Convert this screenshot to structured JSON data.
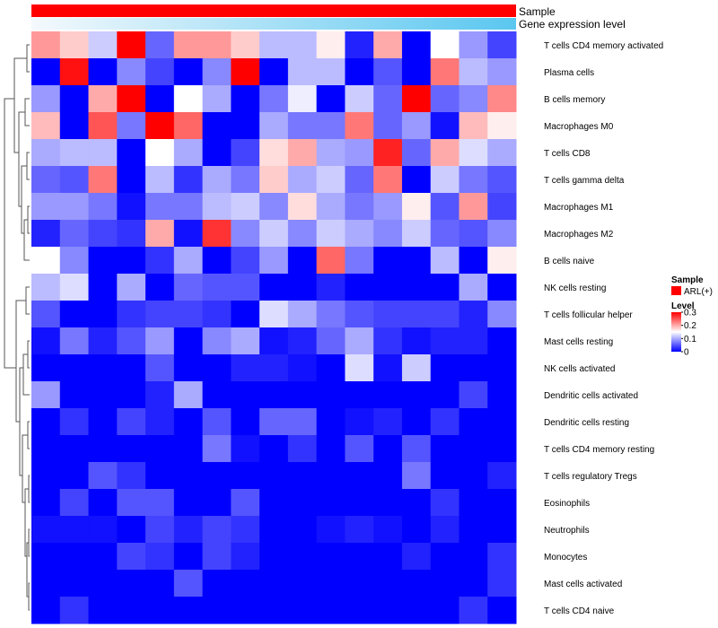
{
  "chart_data": {
    "type": "heatmap",
    "annotation_tracks": [
      {
        "name": "Sample",
        "color": "#ff0000"
      },
      {
        "name": "Gene expression level",
        "gradient": [
          "#f4f9fc",
          "#5ac7f0"
        ]
      }
    ],
    "rows": [
      "T cells CD4 memory activated",
      "Plasma cells",
      "B cells memory",
      "Macrophages M0",
      "T cells CD8",
      "T cells gamma delta",
      "Macrophages M1",
      "Macrophages M2",
      "B cells naive",
      "NK cells resting",
      "T cells follicular helper",
      "Mast cells resting",
      "NK cells activated",
      "Dendritic cells activated",
      "Dendritic cells resting",
      "T cells CD4 memory resting",
      "T cells regulatory  Tregs",
      "Eosinophils",
      "Neutrophils",
      "Monocytes",
      "Mast cells activated",
      "T cells CD4 naive"
    ],
    "values": [
      [
        0.21,
        0.18,
        0.12,
        0.3,
        0.06,
        0.21,
        0.21,
        0.18,
        0.11,
        0.11,
        0.16,
        0.02,
        0.2,
        0.0,
        0.15,
        0.09,
        0.04
      ],
      [
        0.0,
        0.29,
        0.0,
        0.08,
        0.04,
        0.0,
        0.08,
        0.3,
        0.0,
        0.11,
        0.11,
        0.0,
        0.05,
        0.0,
        0.23,
        0.11,
        0.09
      ],
      [
        0.09,
        0.0,
        0.2,
        0.3,
        0.0,
        0.15,
        0.1,
        0.0,
        0.07,
        0.14,
        0.0,
        0.12,
        0.06,
        0.3,
        0.06,
        0.08,
        0.22
      ],
      [
        0.19,
        0.0,
        0.25,
        0.07,
        0.3,
        0.24,
        0.0,
        0.0,
        0.1,
        0.07,
        0.07,
        0.23,
        0.06,
        0.09,
        0.01,
        0.19,
        0.16
      ],
      [
        0.1,
        0.11,
        0.11,
        0.0,
        0.15,
        0.1,
        0.0,
        0.04,
        0.17,
        0.2,
        0.1,
        0.09,
        0.28,
        0.06,
        0.2,
        0.13,
        0.1
      ],
      [
        0.06,
        0.05,
        0.23,
        0.0,
        0.11,
        0.03,
        0.1,
        0.07,
        0.18,
        0.1,
        0.12,
        0.06,
        0.23,
        0.0,
        0.12,
        0.07,
        0.05
      ],
      [
        0.09,
        0.09,
        0.07,
        0.01,
        0.07,
        0.07,
        0.11,
        0.12,
        0.08,
        0.17,
        0.1,
        0.07,
        0.09,
        0.16,
        0.05,
        0.21,
        0.04
      ],
      [
        0.02,
        0.06,
        0.04,
        0.03,
        0.2,
        0.01,
        0.27,
        0.08,
        0.12,
        0.08,
        0.12,
        0.1,
        0.08,
        0.12,
        0.06,
        0.05,
        0.08
      ],
      [
        0.15,
        0.08,
        0.0,
        0.0,
        0.03,
        0.1,
        0.0,
        0.04,
        0.09,
        0.0,
        0.24,
        0.07,
        0.0,
        0.0,
        0.11,
        0.0,
        0.16
      ],
      [
        0.11,
        0.13,
        0.0,
        0.1,
        0.0,
        0.06,
        0.05,
        0.05,
        0.0,
        0.0,
        0.02,
        0.0,
        0.0,
        0.0,
        0.0,
        0.1,
        0.0
      ],
      [
        0.05,
        0.0,
        0.0,
        0.03,
        0.04,
        0.04,
        0.03,
        0.0,
        0.13,
        0.1,
        0.07,
        0.05,
        0.04,
        0.04,
        0.04,
        0.02,
        0.08
      ],
      [
        0.01,
        0.07,
        0.02,
        0.05,
        0.09,
        0.0,
        0.08,
        0.1,
        0.01,
        0.02,
        0.06,
        0.1,
        0.03,
        0.01,
        0.02,
        0.02,
        0.0
      ],
      [
        0.0,
        0.0,
        0.0,
        0.0,
        0.05,
        0.0,
        0.0,
        0.02,
        0.02,
        0.01,
        0.0,
        0.13,
        0.01,
        0.12,
        0.0,
        0.0,
        0.0
      ],
      [
        0.09,
        0.0,
        0.0,
        0.0,
        0.02,
        0.1,
        0.0,
        0.0,
        0.0,
        0.0,
        0.0,
        0.0,
        0.0,
        0.0,
        0.0,
        0.04,
        0.0
      ],
      [
        0.0,
        0.03,
        0.0,
        0.04,
        0.02,
        0.0,
        0.05,
        0.0,
        0.06,
        0.06,
        0.0,
        0.01,
        0.02,
        0.0,
        0.03,
        0.0,
        0.0
      ],
      [
        0.0,
        0.0,
        0.0,
        0.0,
        0.0,
        0.0,
        0.07,
        0.01,
        0.0,
        0.03,
        0.0,
        0.05,
        0.0,
        0.05,
        0.0,
        0.0,
        0.0
      ],
      [
        0.0,
        0.0,
        0.05,
        0.03,
        0.0,
        0.0,
        0.0,
        0.0,
        0.0,
        0.0,
        0.0,
        0.0,
        0.0,
        0.07,
        0.0,
        0.0,
        0.02
      ],
      [
        0.0,
        0.04,
        0.0,
        0.05,
        0.05,
        0.0,
        0.0,
        0.05,
        0.0,
        0.0,
        0.0,
        0.0,
        0.0,
        0.0,
        0.03,
        0.0,
        0.0
      ],
      [
        0.01,
        0.01,
        0.01,
        0.0,
        0.04,
        0.02,
        0.04,
        0.03,
        0.0,
        0.0,
        0.01,
        0.02,
        0.01,
        0.0,
        0.02,
        0.0,
        0.0
      ],
      [
        0.0,
        0.0,
        0.0,
        0.04,
        0.03,
        0.0,
        0.04,
        0.02,
        0.0,
        0.0,
        0.0,
        0.0,
        0.0,
        0.02,
        0.0,
        0.0,
        0.03
      ],
      [
        0.0,
        0.0,
        0.0,
        0.0,
        0.0,
        0.05,
        0.0,
        0.0,
        0.0,
        0.0,
        0.0,
        0.0,
        0.0,
        0.0,
        0.0,
        0.0,
        0.03
      ],
      [
        0.0,
        0.03,
        0.0,
        0.0,
        0.0,
        0.0,
        0.0,
        0.0,
        0.0,
        0.0,
        0.0,
        0.0,
        0.0,
        0.0,
        0.0,
        0.03,
        0.0
      ]
    ],
    "color_scale": {
      "min": 0,
      "max": 0.3,
      "colors": [
        "#0000ff",
        "#ffffff",
        "#ff0000"
      ],
      "mid": 0.15
    },
    "dendrogram": "rows"
  },
  "legend": {
    "sample_title": "Sample",
    "sample_label": "ARL(+)",
    "sample_color": "#ff0000",
    "level_title": "Level",
    "level_ticks": [
      "0.3",
      "0.2",
      "0.1",
      "0"
    ]
  }
}
